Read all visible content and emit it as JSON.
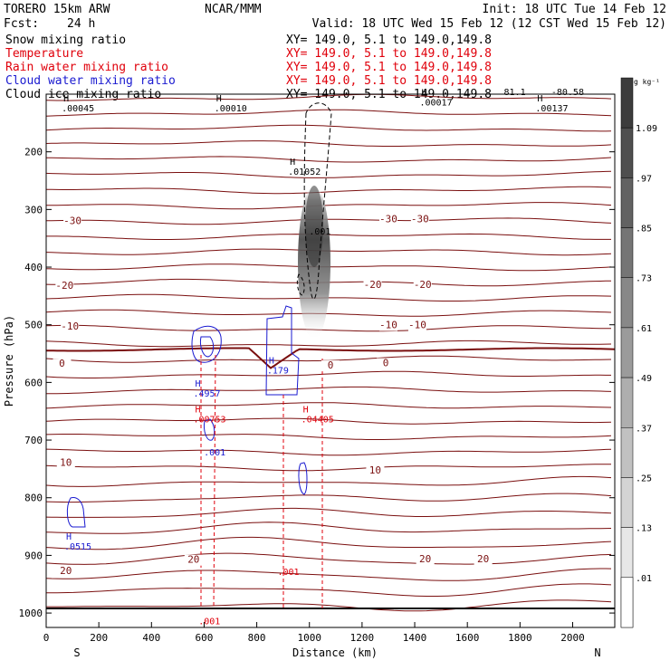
{
  "header": {
    "model": "TORERO  15km ARW",
    "org": "NCAR/MMM",
    "init": "Init: 18 UTC Tue 14 Feb 12",
    "fcst_label": "Fcst:",
    "fcst_value": "24 h",
    "valid": "Valid: 18 UTC Wed 15 Feb 12 (12 CST Wed 15 Feb 12)"
  },
  "fields": [
    {
      "name": "Snow mixing ratio",
      "xy": "XY= 149.0,  5.1 to 149.0,149.8",
      "color": "#000000"
    },
    {
      "name": "Temperature",
      "xy": "XY= 149.0,  5.1 to 149.0,149.8",
      "color": "#e0000b"
    },
    {
      "name": "Rain water mixing ratio",
      "xy": "XY= 149.0,  5.1 to 149.0,149.8",
      "color": "#e0000b"
    },
    {
      "name": "Cloud water mixing ratio",
      "xy": "XY= 149.0,  5.1 to 149.0,149.8",
      "color": "#1a1ad0"
    },
    {
      "name": "Cloud ice mixing ratio",
      "xy": "XY= 149.0,  5.1 to 149.0,149.8",
      "color": "#000000"
    }
  ],
  "chart_data": {
    "type": "vertical cross-section (contour)",
    "xlabel": "Distance (km)",
    "ylabel": "Pressure (hPa)",
    "xlim": [
      0,
      2160
    ],
    "ylim": [
      1025,
      100
    ],
    "x_ticks": [
      0,
      200,
      400,
      600,
      800,
      1000,
      1200,
      1400,
      1600,
      1800,
      2000
    ],
    "y_ticks": [
      200,
      300,
      400,
      500,
      600,
      700,
      800,
      900,
      1000
    ],
    "x_end_labels": {
      "left": "S",
      "right": "N"
    },
    "temperature_contours_C": [
      {
        "value": -30,
        "labels": [
          {
            "x": 100,
            "p": 325
          },
          {
            "x": 1300,
            "p": 322
          },
          {
            "x": 1420,
            "p": 322
          }
        ]
      },
      {
        "value": -20,
        "labels": [
          {
            "x": 70,
            "p": 438
          },
          {
            "x": 1240,
            "p": 436
          },
          {
            "x": 1430,
            "p": 436
          }
        ]
      },
      {
        "value": -10,
        "labels": [
          {
            "x": 90,
            "p": 508
          },
          {
            "x": 1300,
            "p": 506
          },
          {
            "x": 1410,
            "p": 506
          }
        ]
      },
      {
        "value": 0,
        "labels": [
          {
            "x": 60,
            "p": 573
          },
          {
            "x": 1080,
            "p": 576
          },
          {
            "x": 1290,
            "p": 572
          }
        ]
      },
      {
        "value": 10,
        "labels": [
          {
            "x": 75,
            "p": 745
          },
          {
            "x": 1250,
            "p": 758
          }
        ]
      },
      {
        "value": 20,
        "labels": [
          {
            "x": 75,
            "p": 932
          },
          {
            "x": 560,
            "p": 913
          },
          {
            "x": 1440,
            "p": 912
          },
          {
            "x": 1660,
            "p": 912
          }
        ]
      }
    ],
    "extremes": [
      {
        "label": "H",
        "value": ".00045",
        "x": 100,
        "p": 128,
        "field": "snow"
      },
      {
        "label": "H",
        "value": ".00010",
        "x": 680,
        "p": 128,
        "field": "snow"
      },
      {
        "label": "H",
        "value": ".00017",
        "x": 1460,
        "p": 118,
        "field": "snow"
      },
      {
        "label": "H",
        "value": ".00137",
        "x": 1900,
        "p": 128,
        "field": "snow"
      },
      {
        "label": "H",
        "value": ".01052",
        "x": 960,
        "p": 238,
        "field": "cloud ice"
      },
      {
        "label": "",
        "value": ".001",
        "x": 1040,
        "p": 342,
        "field": "cloud ice"
      },
      {
        "label": "H",
        "value": ".179",
        "x": 880,
        "p": 583,
        "field": "cloud water"
      },
      {
        "label": "H",
        "value": ".4957",
        "x": 600,
        "p": 623,
        "field": "cloud water"
      },
      {
        "label": "H",
        "value": ".00753",
        "x": 600,
        "p": 668,
        "field": "rain"
      },
      {
        "label": "",
        "value": ".001",
        "x": 640,
        "p": 725,
        "field": "cloud water"
      },
      {
        "label": "H",
        "value": ".04405",
        "x": 1010,
        "p": 668,
        "field": "rain"
      },
      {
        "label": "H",
        "value": ".0515",
        "x": 110,
        "p": 888,
        "field": "cloud water"
      },
      {
        "label": "",
        "value": ".001",
        "x": 920,
        "p": 932,
        "field": "rain"
      },
      {
        "label": "",
        "value": ".001",
        "x": 620,
        "p": 1018,
        "field": "rain"
      },
      {
        "label": "",
        "value": "-80.58",
        "x": 1960,
        "p": 100,
        "field": "temperature"
      },
      {
        "label": "",
        "value": "81.1",
        "x": 1780,
        "p": 100,
        "field": "temperature"
      }
    ],
    "colorbar": {
      "units": "g kg⁻¹",
      "ticks": [
        "1.09",
        ".97",
        ".85",
        ".73",
        ".61",
        ".49",
        ".37",
        ".25",
        ".13",
        ".01"
      ]
    }
  }
}
